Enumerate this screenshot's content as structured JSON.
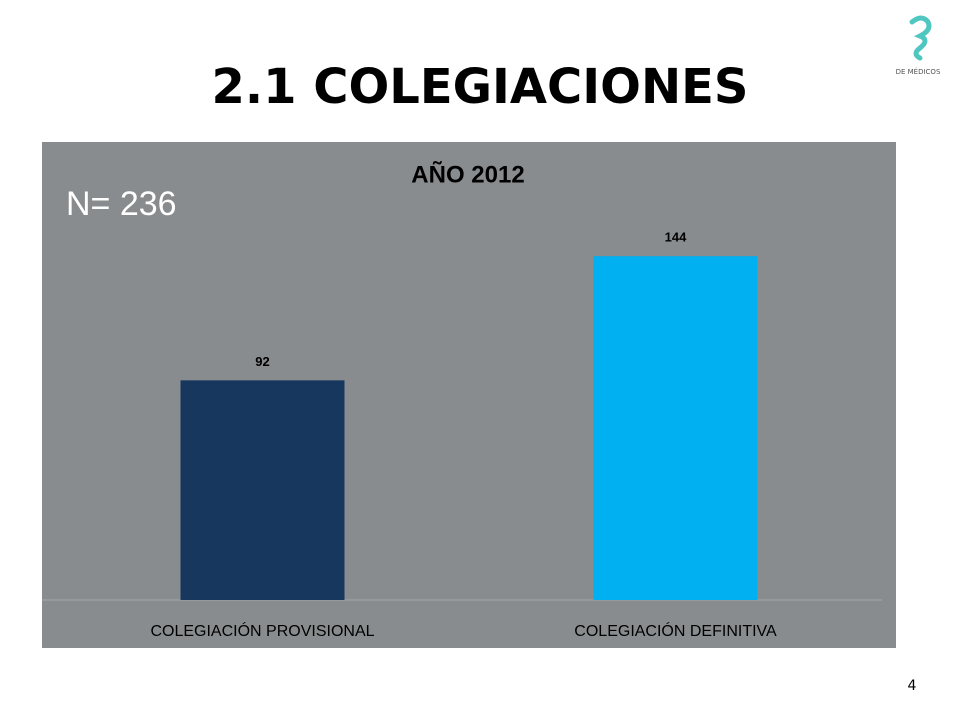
{
  "slide": {
    "title": "2.1 COLEGIACIONES",
    "page_number": "4",
    "logo_text": "DE MÉDICOS"
  },
  "chart_data": {
    "type": "bar",
    "title": "AÑO 2012",
    "annotation": "N= 236",
    "categories": [
      "COLEGIACIÓN PROVISIONAL",
      "COLEGIACIÓN DEFINITIVA"
    ],
    "values": [
      92,
      144
    ],
    "colors": [
      "#17375e",
      "#00b0f0"
    ],
    "ylim": [
      0,
      160
    ]
  }
}
